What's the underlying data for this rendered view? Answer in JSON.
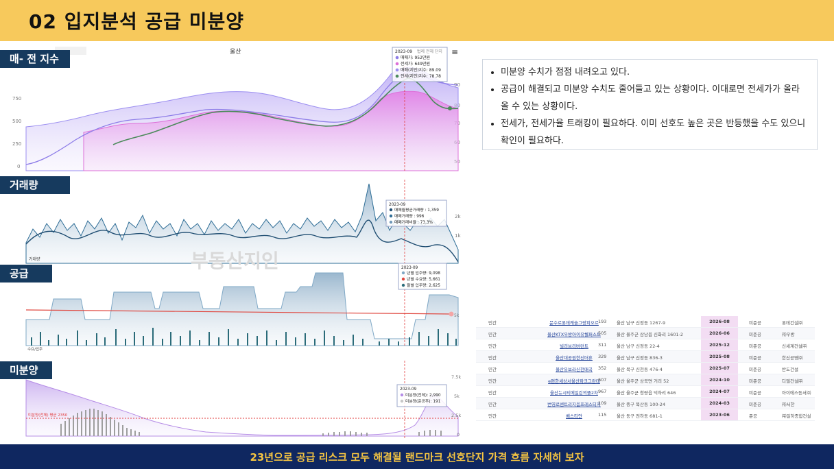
{
  "header": {
    "title": "02 입지분석 공급 미분양"
  },
  "footer": {
    "caption": "23년으로 공급 리스크 모두 해결될 랜드마크 선호단지 가격 흐름 자세히 보자"
  },
  "sections": {
    "price_index": "매- 전 지수",
    "volume": "거래량",
    "supply": "공급",
    "unsold": "미분양"
  },
  "chart_top": {
    "region": "울산",
    "left_ticks": [
      "750",
      "500",
      "250",
      "0"
    ],
    "right_ticks": [
      "90",
      "80",
      "70",
      "60",
      "50"
    ],
    "tooltip": {
      "date": "2023-09",
      "lines": [
        "매매가: 952만원",
        "전세가: 649만원",
        "매매(지인)지수: 89.09",
        "전세(지인)지수: 78.78"
      ],
      "extra": "법례 전체 단지"
    }
  },
  "chart_volume": {
    "tooltip": {
      "date": "2023-09",
      "lines": [
        "매매월평균거래량 : 1,359",
        "매매거래량 : 996",
        "매매거래비율 : 73.3%"
      ]
    },
    "right_ticks": [
      "2k",
      "1k"
    ],
    "axis_label": "거래량",
    "watermark": "부동산지인"
  },
  "chart_supply": {
    "tooltip": {
      "date": "2023-09",
      "lines": [
        "년별 입주량: 9,098",
        "년별 수요량: 5,661",
        "월별 입주량: 2,625"
      ]
    },
    "right_tick": "5k",
    "axis_label": "수요/입주"
  },
  "chart_unsold": {
    "tooltip": {
      "date": "2023-09",
      "lines": [
        "미분양(전체): 2,990",
        "미분양(준공후): 191"
      ]
    },
    "right_ticks": [
      "7.5k",
      "5k",
      "2.5k",
      "0"
    ],
    "avg_label": "미분양(전체) 평균 2350"
  },
  "bullets": [
    "미분양 수치가 점점 내려오고 있다.",
    "공급이 해결되고 미분양 수치도 줄어들고 있는 상황이다. 이대로면 전세가가 올라올 수 있는 상황이다.",
    "전세가, 전세가율 트래킹이 필요하다. 이미 선호도 높은 곳은 반등했을 수도 있으니 확인이 필요하다."
  ],
  "table": [
    {
      "type": "민간",
      "name": "문수로롯데캐슬그랑피오르",
      "units": "193",
      "addr": "울산 남구 신정동 1267-9",
      "date": "2026-08",
      "status": "미준공",
      "builder": "롯데건설㈜"
    },
    {
      "type": "민간",
      "name": "울산KTX우방아이유쉘퍼스트",
      "units": "505",
      "addr": "울산 울주군 삼남읍 신화리 1601-2",
      "date": "2026-06",
      "status": "미준공",
      "builder": "㈜우방"
    },
    {
      "type": "민간",
      "name": "빌리브리버런트",
      "units": "311",
      "addr": "울산 남구 신정동 22-4",
      "date": "2025-12",
      "status": "미준공",
      "builder": "신세계건설㈜"
    },
    {
      "type": "민간",
      "name": "울산대공원한신더휴",
      "units": "329",
      "addr": "울산 남구 신정동 836-3",
      "date": "2025-08",
      "status": "미준공",
      "builder": "한신공영㈜"
    },
    {
      "type": "민간",
      "name": "울산유보라신천매곡",
      "units": "352",
      "addr": "울산 북구 신천동 476-4",
      "date": "2025-07",
      "status": "미준공",
      "builder": "반도건설"
    },
    {
      "type": "민간",
      "name": "e편한세상서울산파크그란데",
      "units": "607",
      "addr": "울산 울주군 상북면 거리 52",
      "date": "2024-10",
      "status": "미준공",
      "builder": "디엘건설㈜"
    },
    {
      "type": "민간",
      "name": "울산뉴시티에일린의뜰2차",
      "units": "967",
      "addr": "울산 울주군 청량읍 덕하리 646",
      "date": "2024-07",
      "status": "미준공",
      "builder": "아이에스동서㈜"
    },
    {
      "type": "민간",
      "name": "번영로센트리지음프레스티지",
      "units": "109",
      "addr": "울산 중구 복산동 100-24",
      "date": "2024-03",
      "status": "미준공",
      "builder": "㈜서한"
    },
    {
      "type": "민간",
      "name": "베스티안",
      "units": "115",
      "addr": "울산 동구 전하동 681-1",
      "date": "2023-06",
      "status": "준공",
      "builder": "㈜일하종합건설"
    }
  ]
}
